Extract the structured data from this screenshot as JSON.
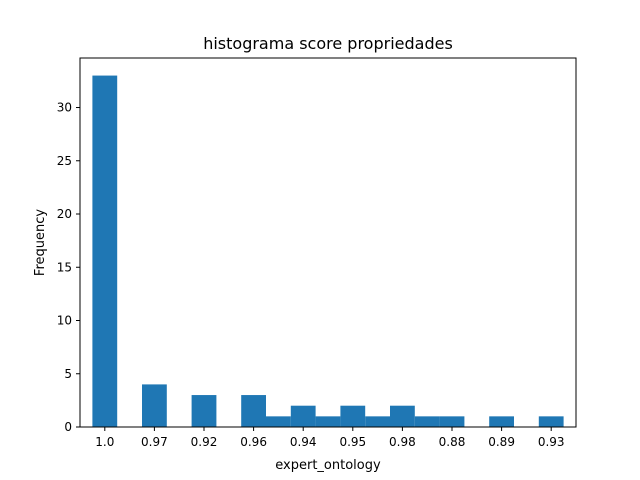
{
  "chart_data": {
    "type": "bar",
    "title": "histograma score propriedades",
    "xlabel": "expert_ontology",
    "ylabel": "Frequency",
    "bar_color": "#1f77b4",
    "bars": [
      {
        "x": 0,
        "value": 33
      },
      {
        "x": 1,
        "value": 4
      },
      {
        "x": 2,
        "value": 3
      },
      {
        "x": 3,
        "value": 3
      },
      {
        "x": 3.5,
        "value": 1
      },
      {
        "x": 4,
        "value": 2
      },
      {
        "x": 4.5,
        "value": 1
      },
      {
        "x": 5,
        "value": 2
      },
      {
        "x": 5.5,
        "value": 1
      },
      {
        "x": 6,
        "value": 2
      },
      {
        "x": 6.5,
        "value": 1
      },
      {
        "x": 7,
        "value": 1
      },
      {
        "x": 8,
        "value": 1
      },
      {
        "x": 9,
        "value": 1
      }
    ],
    "x_ticks": [
      {
        "pos": 0,
        "label": "1.0"
      },
      {
        "pos": 1,
        "label": "0.97"
      },
      {
        "pos": 2,
        "label": "0.92"
      },
      {
        "pos": 3,
        "label": "0.96"
      },
      {
        "pos": 4,
        "label": "0.94"
      },
      {
        "pos": 5,
        "label": "0.95"
      },
      {
        "pos": 6,
        "label": "0.98"
      },
      {
        "pos": 7,
        "label": "0.88"
      },
      {
        "pos": 8,
        "label": "0.89"
      },
      {
        "pos": 9,
        "label": "0.93"
      }
    ],
    "y_ticks": [
      {
        "pos": 0,
        "label": "0"
      },
      {
        "pos": 5,
        "label": "5"
      },
      {
        "pos": 10,
        "label": "10"
      },
      {
        "pos": 15,
        "label": "15"
      },
      {
        "pos": 20,
        "label": "20"
      },
      {
        "pos": 25,
        "label": "25"
      },
      {
        "pos": 30,
        "label": "30"
      }
    ],
    "xlim": [
      -0.5,
      9.5
    ],
    "ylim": [
      0,
      34.65
    ],
    "grid": false
  }
}
